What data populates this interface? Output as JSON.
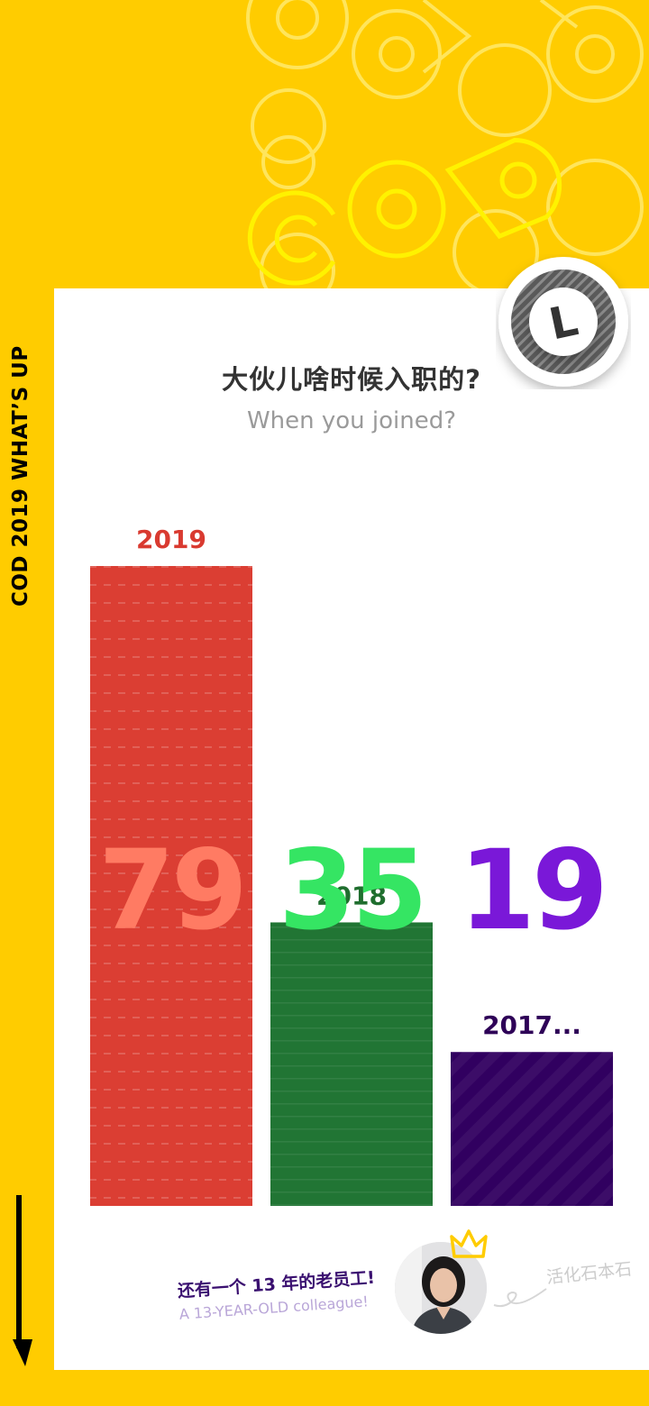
{
  "side_label": "COD 2019 WHAT’S UP",
  "header": {
    "decor_text": "COD"
  },
  "badge": {
    "letter": "L"
  },
  "titles": {
    "cn": "大伙儿啥时候入职的?",
    "en": "When you joined?"
  },
  "chart_data": {
    "type": "bar",
    "title": "大伙儿啥时候入职的?",
    "subtitle": "When you joined?",
    "categories": [
      "2019",
      "2018",
      "2017..."
    ],
    "values": [
      79,
      35,
      19
    ],
    "colors": {
      "bars": [
        "#DB3E33",
        "#217534",
        "#310060"
      ],
      "year_labels": [
        "#D93A30",
        "#1F6E2E",
        "#2E0057"
      ],
      "value_text": [
        "#FF7B63",
        "#35E563",
        "#7A18D8"
      ]
    },
    "ylim": [
      0,
      79
    ],
    "xlabel": "",
    "ylabel": "",
    "grid": false
  },
  "footer": {
    "note_cn": "还有一个 13 年的老员工!",
    "note_en": "A 13-YEAR-OLD colleague!",
    "nickname": "活化石本石"
  },
  "colors": {
    "background": "#FFCC00",
    "card": "#FFFFFF",
    "title": "#333333",
    "subtitle": "#9A9A9A"
  }
}
